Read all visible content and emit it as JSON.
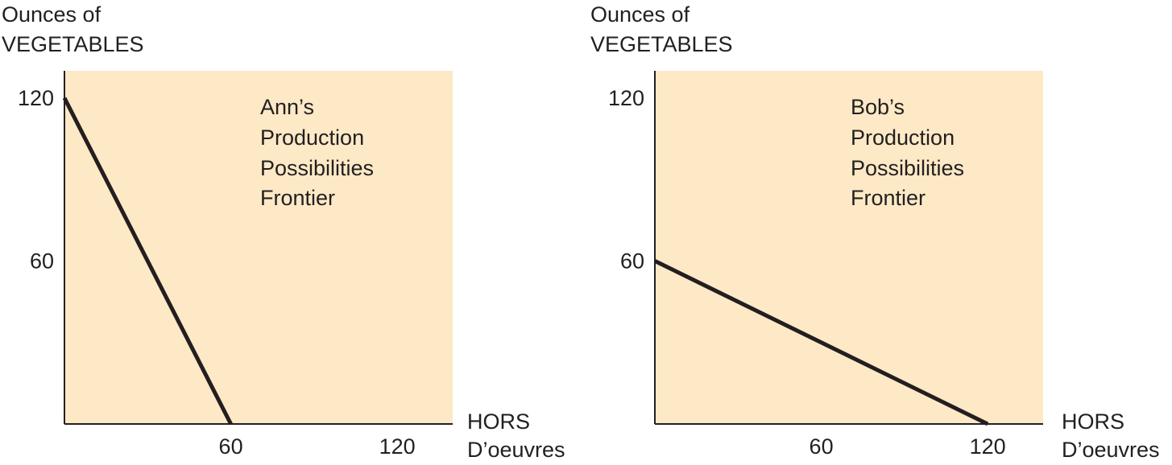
{
  "chart_data": [
    {
      "type": "line",
      "title": "",
      "annotation": [
        "Ann’s",
        "Production",
        "Possibilities",
        "Frontier"
      ],
      "ylabel": [
        "Ounces of",
        "VEGETABLES"
      ],
      "xlabel": [
        "HORS",
        "D’oeuvres"
      ],
      "xlim": [
        0,
        140
      ],
      "ylim": [
        0,
        130
      ],
      "xticks": [
        60,
        120
      ],
      "yticks": [
        60,
        120
      ],
      "series": [
        {
          "x": [
            0,
            60
          ],
          "y": [
            120,
            0
          ]
        }
      ],
      "grid": false,
      "colors": {
        "plot_background": "#fde9c6",
        "line": "#231f20",
        "axis": "#231f20"
      }
    },
    {
      "type": "line",
      "title": "",
      "annotation": [
        "Bob’s",
        "Production",
        "Possibilities",
        "Frontier"
      ],
      "ylabel": [
        "Ounces of",
        "VEGETABLES"
      ],
      "xlabel": [
        "HORS",
        "D’oeuvres"
      ],
      "xlim": [
        0,
        140
      ],
      "ylim": [
        0,
        130
      ],
      "xticks": [
        60,
        120
      ],
      "yticks": [
        60,
        120
      ],
      "series": [
        {
          "x": [
            0,
            120
          ],
          "y": [
            60,
            0
          ]
        }
      ],
      "grid": false,
      "colors": {
        "plot_background": "#fde9c6",
        "line": "#231f20",
        "axis": "#231f20"
      }
    }
  ]
}
